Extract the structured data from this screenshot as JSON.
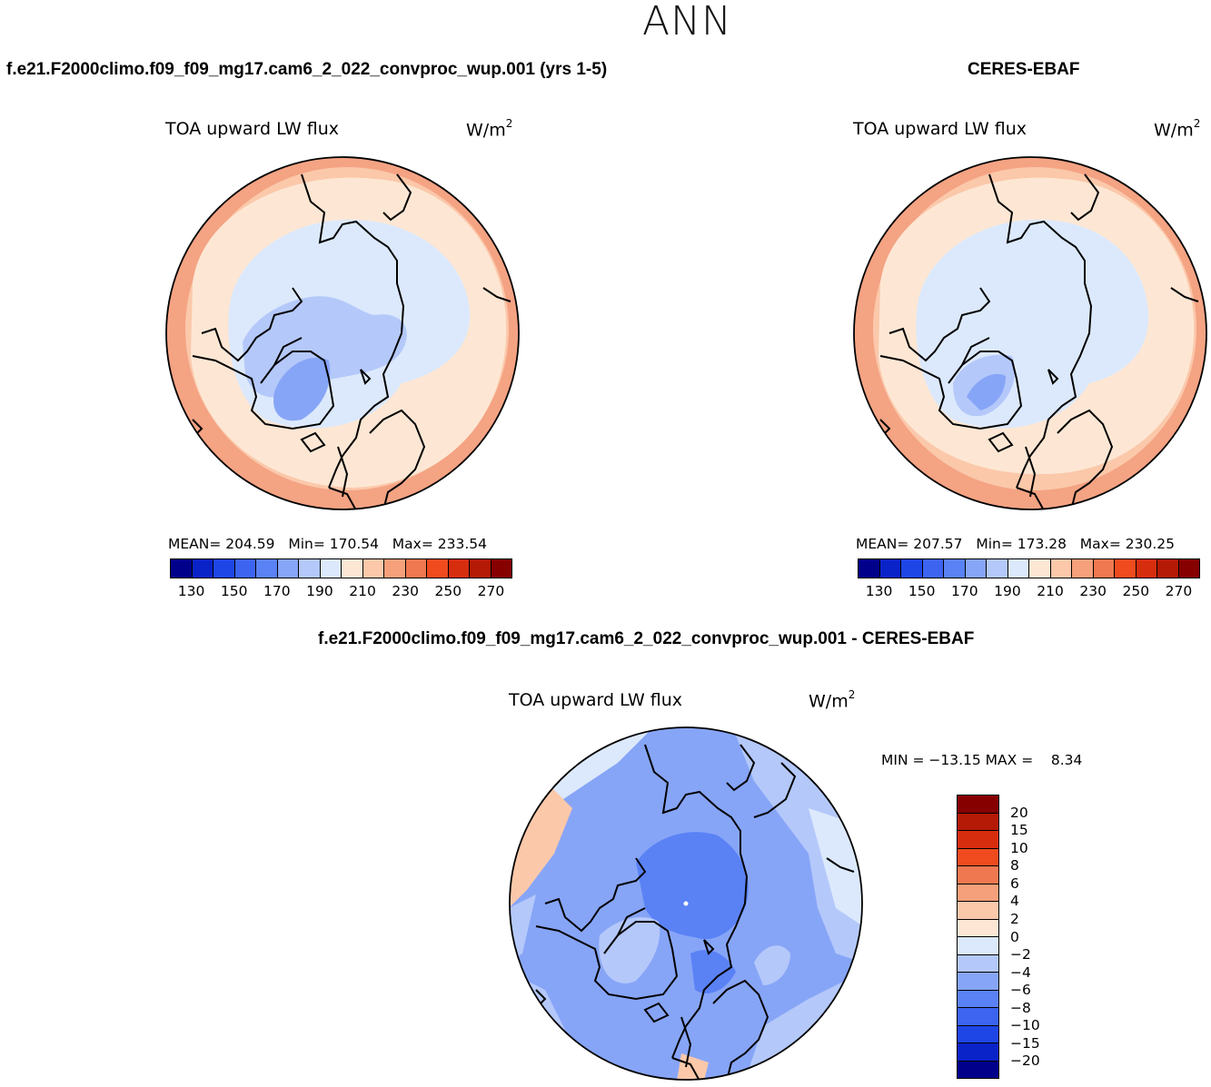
{
  "season": "ANN",
  "panels": {
    "model": {
      "case_title": "f.e21.F2000climo.f09_f09_mg17.cam6_2_022_convproc_wup.001 (yrs 1-5)",
      "variable": "TOA upward LW flux",
      "units_base": "W/m",
      "units_exp": "2",
      "mean_label": "MEAN=",
      "mean_value": "204.59",
      "min_label": "Min=",
      "min_value": "170.54",
      "max_label": "Max=",
      "max_value": "233.54"
    },
    "obs": {
      "case_title": "CERES-EBAF",
      "variable": "TOA upward LW flux",
      "units_base": "W/m",
      "units_exp": "2",
      "mean_label": "MEAN=",
      "mean_value": "207.57",
      "min_label": "Min=",
      "min_value": "173.28",
      "max_label": "Max=",
      "max_value": "230.25"
    },
    "diff": {
      "case_title": "f.e21.F2000climo.f09_f09_mg17.cam6_2_022_convproc_wup.001 - CERES-EBAF",
      "variable": "TOA upward LW flux",
      "units_base": "W/m",
      "units_exp": "2",
      "minmax_text": "MIN = −13.15 MAX =    8.34"
    }
  },
  "abs_colorbar": {
    "colors": [
      "#00008b",
      "#0a23c8",
      "#1e46e6",
      "#3c64f0",
      "#5a82f5",
      "#87a5f7",
      "#b4c8fa",
      "#dce9fc",
      "#fde7d4",
      "#fbc8aa",
      "#f5a07a",
      "#f07850",
      "#f04b1e",
      "#d72d0f",
      "#b41a06",
      "#870000"
    ],
    "tick_labels": [
      "130",
      "150",
      "170",
      "190",
      "210",
      "230",
      "250",
      "270"
    ]
  },
  "diff_colorbar": {
    "colors_top_to_bottom": [
      "#870000",
      "#b41a06",
      "#d72d0f",
      "#f04b1e",
      "#f07850",
      "#f5a07a",
      "#fbc8aa",
      "#fde7d4",
      "#dce9fc",
      "#b4c8fa",
      "#87a5f7",
      "#5a82f5",
      "#3c64f0",
      "#1e46e6",
      "#0a23c8",
      "#00008b"
    ],
    "tick_labels_top_to_bottom": [
      "20",
      "15",
      "10",
      "8",
      "6",
      "4",
      "2",
      "0",
      "−2",
      "−4",
      "−6",
      "−8",
      "−10",
      "−15",
      "−20"
    ]
  },
  "map_colors": {
    "outer_warm": "#f4a383",
    "mid_warm": "#fbc8aa",
    "light_warm": "#fde7d4",
    "light_cool": "#dce9fc",
    "mid_cool": "#b4c8fa",
    "deep_cool": "#87a5f7",
    "diff_base": "#87a5f7",
    "diff_dark": "#5a82f5",
    "diff_light": "#b4c8fa",
    "diff_pale": "#dce9fc",
    "diff_warm": "#fbc8aa"
  }
}
